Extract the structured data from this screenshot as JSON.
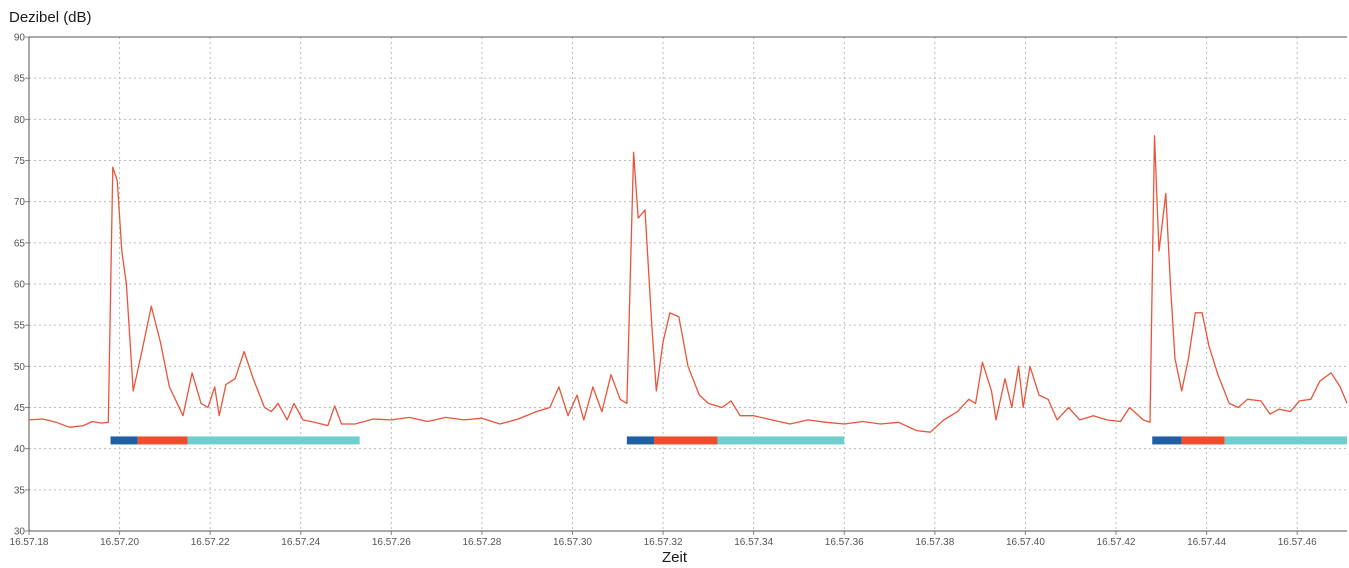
{
  "chart_data": {
    "type": "line",
    "ylabel": "Dezibel (dB)",
    "xlabel": "Zeit",
    "ylim": [
      30,
      90
    ],
    "yticks": [
      30,
      35,
      40,
      45,
      50,
      55,
      60,
      65,
      70,
      75,
      80,
      85,
      90
    ],
    "xlim": [
      "16:57:18",
      "16:57:47.1"
    ],
    "xticks": [
      "16.57.18",
      "16.57.20",
      "16.57.22",
      "16.57.24",
      "16.57.26",
      "16.57.28",
      "16.57.30",
      "16.57.32",
      "16.57.34",
      "16.57.36",
      "16.57.38",
      "16.57.40",
      "16.57.42",
      "16.57.44",
      "16.57.46"
    ],
    "grid": true,
    "series": [
      {
        "color": "#e8553a",
        "points": [
          [
            "16:57:18.0",
            43.5
          ],
          [
            "16:57:18.3",
            43.6
          ],
          [
            "16:57:18.6",
            43.2
          ],
          [
            "16:57:18.9",
            42.6
          ],
          [
            "16:57:19.2",
            42.8
          ],
          [
            "16:57:19.4",
            43.3
          ],
          [
            "16:57:19.6",
            43.1
          ],
          [
            "16:57:19.75",
            43.2
          ],
          [
            "16:57:19.85",
            74.2
          ],
          [
            "16:57:19.95",
            72.5
          ],
          [
            "16:57:20.05",
            64.0
          ],
          [
            "16:57:20.15",
            60.0
          ],
          [
            "16:57:20.3",
            47.0
          ],
          [
            "16:57:20.5",
            52.0
          ],
          [
            "16:57:20.7",
            57.3
          ],
          [
            "16:57:20.9",
            53.0
          ],
          [
            "16:57:21.1",
            47.5
          ],
          [
            "16:57:21.4",
            44.0
          ],
          [
            "16:57:21.6",
            49.2
          ],
          [
            "16:57:21.8",
            45.5
          ],
          [
            "16:57:21.95",
            45.0
          ],
          [
            "16:57:22.1",
            47.5
          ],
          [
            "16:57:22.2",
            44.0
          ],
          [
            "16:57:22.35",
            47.8
          ],
          [
            "16:57:22.55",
            48.5
          ],
          [
            "16:57:22.75",
            51.8
          ],
          [
            "16:57:22.95",
            48.5
          ],
          [
            "16:57:23.2",
            45.0
          ],
          [
            "16:57:23.35",
            44.5
          ],
          [
            "16:57:23.5",
            45.5
          ],
          [
            "16:57:23.7",
            43.5
          ],
          [
            "16:57:23.85",
            45.5
          ],
          [
            "16:57:24.05",
            43.5
          ],
          [
            "16:57:24.3",
            43.2
          ],
          [
            "16:57:24.6",
            42.8
          ],
          [
            "16:57:24.75",
            45.2
          ],
          [
            "16:57:24.9",
            43.0
          ],
          [
            "16:57:25.2",
            43.0
          ],
          [
            "16:57:25.6",
            43.6
          ],
          [
            "16:57:26.0",
            43.5
          ],
          [
            "16:57:26.4",
            43.8
          ],
          [
            "16:57:26.8",
            43.3
          ],
          [
            "16:57:27.2",
            43.8
          ],
          [
            "16:57:27.6",
            43.5
          ],
          [
            "16:57:28.0",
            43.7
          ],
          [
            "16:57:28.4",
            43.0
          ],
          [
            "16:57:28.8",
            43.6
          ],
          [
            "16:57:29.2",
            44.5
          ],
          [
            "16:57:29.5",
            45.0
          ],
          [
            "16:57:29.7",
            47.5
          ],
          [
            "16:57:29.9",
            44.0
          ],
          [
            "16:57:30.1",
            46.5
          ],
          [
            "16:57:30.25",
            43.5
          ],
          [
            "16:57:30.45",
            47.5
          ],
          [
            "16:57:30.65",
            44.5
          ],
          [
            "16:57:30.85",
            49.0
          ],
          [
            "16:57:31.05",
            46.0
          ],
          [
            "16:57:31.2",
            45.5
          ],
          [
            "16:57:31.35",
            76.0
          ],
          [
            "16:57:31.45",
            68.0
          ],
          [
            "16:57:31.6",
            69.0
          ],
          [
            "16:57:31.75",
            55.0
          ],
          [
            "16:57:31.85",
            47.0
          ],
          [
            "16:57:32.0",
            53.0
          ],
          [
            "16:57:32.15",
            56.5
          ],
          [
            "16:57:32.35",
            56.0
          ],
          [
            "16:57:32.55",
            50.0
          ],
          [
            "16:57:32.8",
            46.5
          ],
          [
            "16:57:33.0",
            45.5
          ],
          [
            "16:57:33.3",
            45.0
          ],
          [
            "16:57:33.5",
            45.8
          ],
          [
            "16:57:33.7",
            44.0
          ],
          [
            "16:57:34.0",
            44.0
          ],
          [
            "16:57:34.4",
            43.5
          ],
          [
            "16:57:34.8",
            43.0
          ],
          [
            "16:57:35.2",
            43.5
          ],
          [
            "16:57:35.6",
            43.2
          ],
          [
            "16:57:36.0",
            43.0
          ],
          [
            "16:57:36.4",
            43.3
          ],
          [
            "16:57:36.8",
            43.0
          ],
          [
            "16:57:37.2",
            43.2
          ],
          [
            "16:57:37.6",
            42.2
          ],
          [
            "16:57:37.9",
            42.0
          ],
          [
            "16:57:38.2",
            43.5
          ],
          [
            "16:57:38.5",
            44.5
          ],
          [
            "16:57:38.75",
            46.0
          ],
          [
            "16:57:38.9",
            45.5
          ],
          [
            "16:57:39.05",
            50.5
          ],
          [
            "16:57:39.25",
            47.0
          ],
          [
            "16:57:39.35",
            43.5
          ],
          [
            "16:57:39.55",
            48.5
          ],
          [
            "16:57:39.7",
            45.0
          ],
          [
            "16:57:39.85",
            50.0
          ],
          [
            "16:57:39.95",
            45.0
          ],
          [
            "16:57:40.1",
            50.0
          ],
          [
            "16:57:40.3",
            46.5
          ],
          [
            "16:57:40.5",
            46.0
          ],
          [
            "16:57:40.7",
            43.5
          ],
          [
            "16:57:40.95",
            45.0
          ],
          [
            "16:57:41.2",
            43.5
          ],
          [
            "16:57:41.5",
            44.0
          ],
          [
            "16:57:41.8",
            43.5
          ],
          [
            "16:57:42.1",
            43.3
          ],
          [
            "16:57:42.3",
            45.0
          ],
          [
            "16:57:42.6",
            43.5
          ],
          [
            "16:57:42.75",
            43.2
          ],
          [
            "16:57:42.85",
            78.0
          ],
          [
            "16:57:42.95",
            64.0
          ],
          [
            "16:57:43.1",
            71.0
          ],
          [
            "16:57:43.2",
            60.0
          ],
          [
            "16:57:43.3",
            51.0
          ],
          [
            "16:57:43.45",
            47.0
          ],
          [
            "16:57:43.6",
            51.0
          ],
          [
            "16:57:43.75",
            56.5
          ],
          [
            "16:57:43.9",
            56.5
          ],
          [
            "16:57:44.05",
            52.5
          ],
          [
            "16:57:44.25",
            49.0
          ],
          [
            "16:57:44.5",
            45.5
          ],
          [
            "16:57:44.7",
            45.0
          ],
          [
            "16:57:44.9",
            46.0
          ],
          [
            "16:57:45.2",
            45.8
          ],
          [
            "16:57:45.4",
            44.2
          ],
          [
            "16:57:45.6",
            44.8
          ],
          [
            "16:57:45.85",
            44.5
          ],
          [
            "16:57:46.05",
            45.8
          ],
          [
            "16:57:46.3",
            46.0
          ],
          [
            "16:57:46.5",
            48.2
          ],
          [
            "16:57:46.75",
            49.2
          ],
          [
            "16:57:46.95",
            47.5
          ],
          [
            "16:57:47.1",
            45.5
          ]
        ]
      }
    ],
    "bands": [
      {
        "level": 41,
        "segments": [
          {
            "from": "16:57:19.8",
            "to": "16:57:20.4",
            "color": "#1f5fa3"
          },
          {
            "from": "16:57:20.4",
            "to": "16:57:21.5",
            "color": "#ee4d2e"
          },
          {
            "from": "16:57:21.5",
            "to": "16:57:25.3",
            "color": "#6fcfcf"
          }
        ]
      },
      {
        "level": 41,
        "segments": [
          {
            "from": "16:57:31.2",
            "to": "16:57:31.8",
            "color": "#1f5fa3"
          },
          {
            "from": "16:57:31.8",
            "to": "16:57:33.2",
            "color": "#ee4d2e"
          },
          {
            "from": "16:57:33.2",
            "to": "16:57:36.0",
            "color": "#6fcfcf"
          }
        ]
      },
      {
        "level": 41,
        "segments": [
          {
            "from": "16:57:42.8",
            "to": "16:57:43.45",
            "color": "#1f5fa3"
          },
          {
            "from": "16:57:43.45",
            "to": "16:57:44.4",
            "color": "#ee4d2e"
          },
          {
            "from": "16:57:44.4",
            "to": "16:57:47.1",
            "color": "#6fcfcf"
          }
        ]
      }
    ]
  }
}
